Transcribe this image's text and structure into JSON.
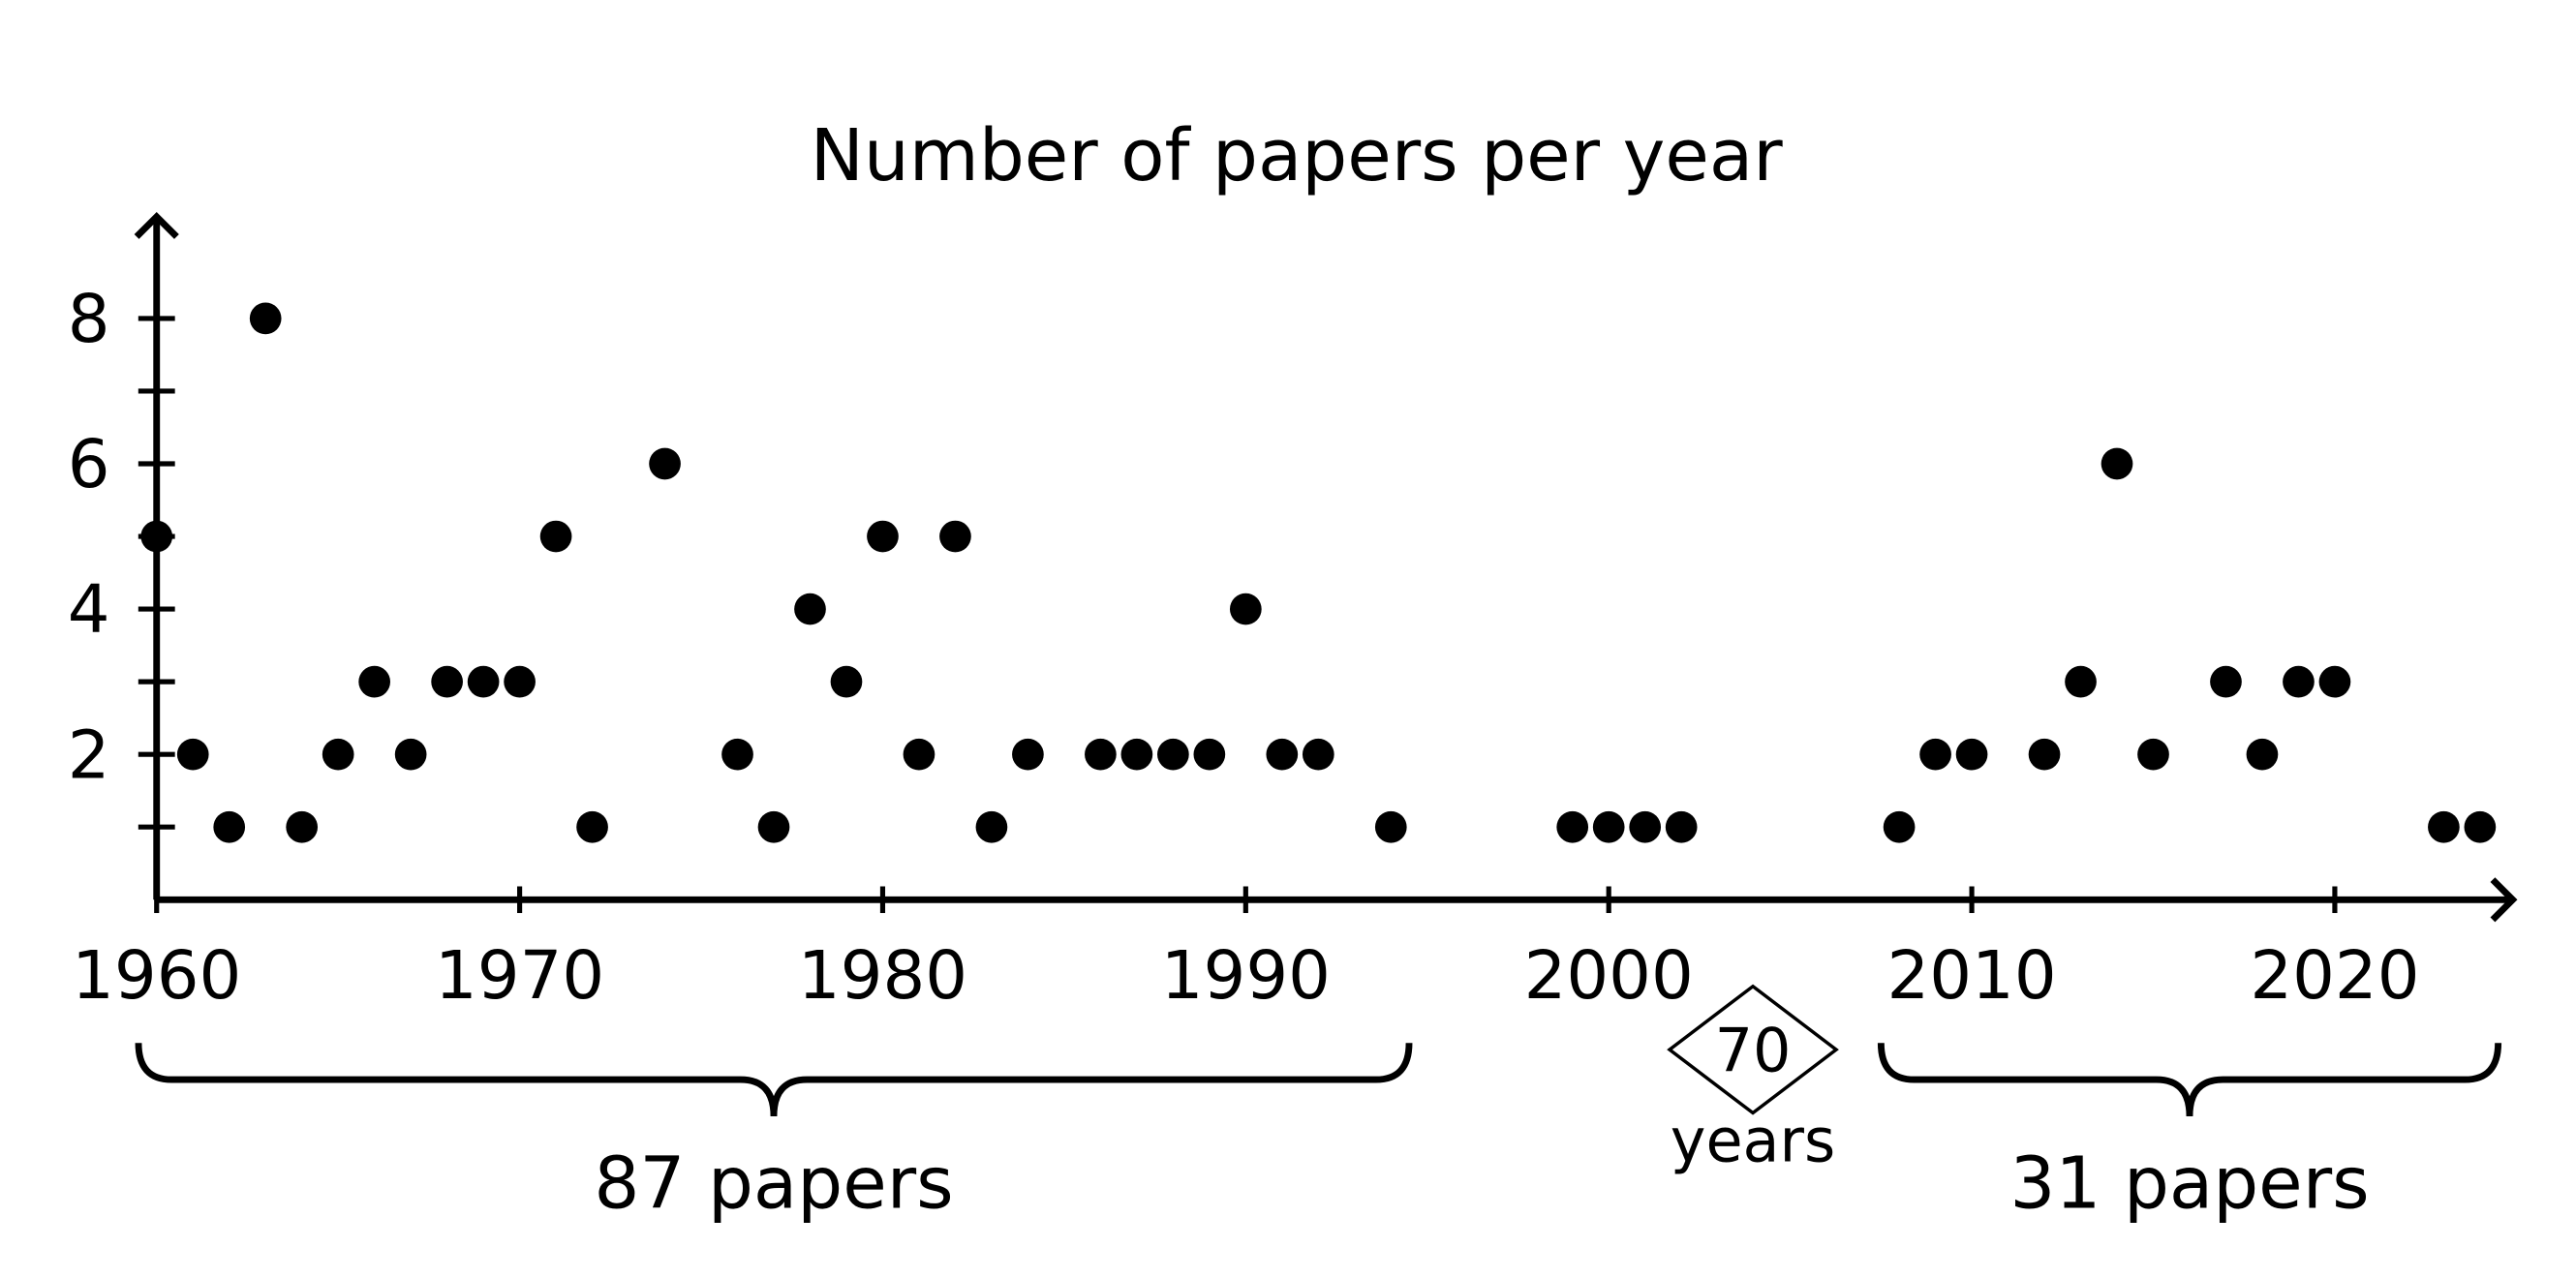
{
  "chart_data": {
    "type": "scatter",
    "title": "Number of papers per year",
    "x": [
      1960,
      1961,
      1962,
      1963,
      1964,
      1965,
      1966,
      1967,
      1968,
      1969,
      1970,
      1971,
      1972,
      1974,
      1976,
      1977,
      1978,
      1979,
      1980,
      1981,
      1982,
      1983,
      1984,
      1986,
      1987,
      1988,
      1989,
      1990,
      1991,
      1992,
      1994,
      1999,
      2000,
      2001,
      2002,
      2008,
      2009,
      2010,
      2012,
      2013,
      2014,
      2015,
      2017,
      2018,
      2019,
      2020,
      2023,
      2024
    ],
    "values": [
      5,
      2,
      1,
      8,
      1,
      2,
      3,
      2,
      3,
      3,
      3,
      5,
      1,
      6,
      2,
      1,
      4,
      3,
      5,
      2,
      5,
      1,
      2,
      2,
      2,
      2,
      2,
      4,
      2,
      2,
      1,
      1,
      1,
      1,
      1,
      1,
      2,
      2,
      2,
      3,
      6,
      2,
      3,
      2,
      3,
      3,
      1,
      1
    ],
    "color": "#000000",
    "xlim": [
      1960,
      2024.9
    ],
    "xticks": [
      1960,
      1970,
      1980,
      1990,
      2000,
      2010,
      2020
    ],
    "ylim": [
      0,
      9.4
    ],
    "yticks": [
      2,
      4,
      6,
      8
    ],
    "yticks_minor": [
      1,
      3,
      5,
      7
    ],
    "annotations": [
      {
        "text": "87 papers",
        "span": [
          1960,
          1994
        ]
      },
      {
        "text": "31 papers",
        "span": [
          2008,
          2024
        ]
      }
    ],
    "gap_label": {
      "number": 70,
      "text": "years"
    }
  }
}
